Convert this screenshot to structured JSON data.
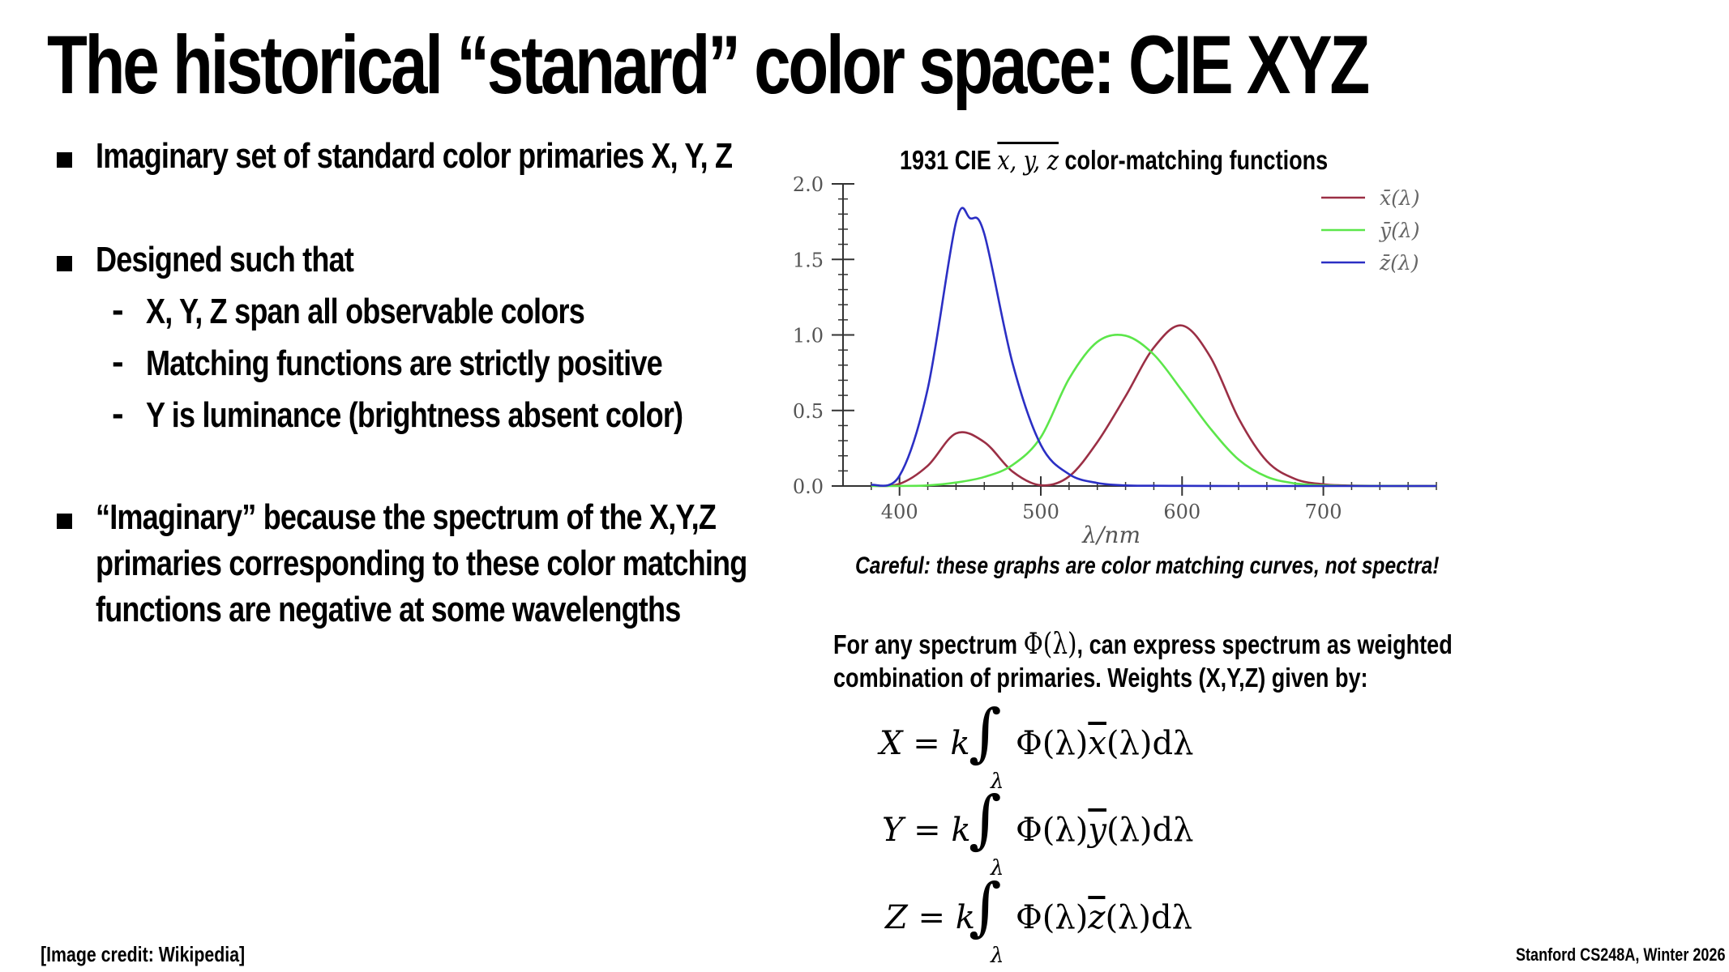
{
  "title": "The historical “stanard” color space: CIE XYZ",
  "bullets": [
    {
      "text": "Imaginary set of standard color primaries X, Y, Z"
    },
    {
      "text": "Designed such that",
      "sub": [
        "X, Y, Z span all observable colors",
        "Matching functions are strictly positive",
        "Y is luminance (brightness absent color)"
      ]
    },
    {
      "lines": [
        "“Imaginary” because the spectrum of the X,Y,Z",
        "primaries corresponding to these color matching",
        "functions are negative at some wavelengths"
      ]
    }
  ],
  "chart_title_prefix": "1931 CIE",
  "chart_title_math": "x, y, z",
  "chart_title_suffix": "color-matching functions",
  "caution": "Careful: these graphs are color matching curves, not spectra!",
  "para_line1_a": "For any spectrum",
  "para_math": "Φ(λ)",
  "para_line1_b": ", can express spectrum as weighted",
  "para_line2": "combination of primaries. Weights (X,Y,Z) given by:",
  "equations": [
    {
      "lhs": "X = k",
      "bar": "x",
      "pre": "Φ(λ)",
      "post": "(λ)dλ"
    },
    {
      "lhs": "Y = k",
      "bar": "y",
      "pre": "Φ(λ)",
      "post": "(λ)dλ"
    },
    {
      "lhs": "Z = k",
      "bar": "z",
      "pre": "Φ(λ)",
      "post": "(λ)dλ"
    }
  ],
  "integral_sub": "λ",
  "footer_left": "[Image credit: Wikipedia]",
  "footer_right": "Stanford CS248A, Winter 2026",
  "chart_data": {
    "type": "line",
    "title": "1931 CIE x, y, z color-matching functions",
    "xlabel": "λ/nm",
    "ylabel": "",
    "xlim": [
      360,
      780
    ],
    "ylim": [
      0,
      2.0
    ],
    "xticks": [
      400,
      500,
      600,
      700
    ],
    "yticks": [
      "0.0",
      "0.5",
      "1.0",
      "1.5",
      "2.0"
    ],
    "yticks_values": [
      0,
      0.5,
      1.0,
      1.5,
      2.0
    ],
    "legend_position": "top-right",
    "series": [
      {
        "name": "x̄(λ)",
        "color": "#9b2f45",
        "x": [
          380,
          400,
          420,
          440,
          460,
          480,
          500,
          520,
          540,
          560,
          580,
          600,
          620,
          640,
          660,
          680,
          700,
          720,
          740,
          760,
          780
        ],
        "y": [
          0.0014,
          0.0143,
          0.1344,
          0.3483,
          0.2908,
          0.0956,
          0.0049,
          0.0633,
          0.2904,
          0.5945,
          0.9163,
          1.0622,
          0.8544,
          0.4479,
          0.1649,
          0.0468,
          0.0114,
          0.0029,
          0.0007,
          0.0002,
          0.0
        ]
      },
      {
        "name": "ȳ(λ)",
        "color": "#5ce64a",
        "x": [
          380,
          400,
          420,
          440,
          460,
          480,
          500,
          520,
          540,
          560,
          580,
          600,
          620,
          640,
          660,
          680,
          700,
          720,
          740,
          760,
          780
        ],
        "y": [
          0.0,
          0.0004,
          0.004,
          0.023,
          0.06,
          0.139,
          0.323,
          0.71,
          0.954,
          0.995,
          0.87,
          0.631,
          0.381,
          0.175,
          0.061,
          0.017,
          0.0041,
          0.001,
          0.0002,
          0.0001,
          0.0
        ]
      },
      {
        "name": "z̄(λ)",
        "color": "#2b2fc4",
        "x": [
          380,
          400,
          420,
          440,
          450,
          460,
          480,
          500,
          520,
          540,
          560,
          580,
          600,
          620,
          640,
          660,
          680,
          700,
          720,
          740,
          760,
          780
        ],
        "y": [
          0.0065,
          0.0679,
          0.6456,
          1.7471,
          1.7721,
          1.6692,
          0.813,
          0.272,
          0.0782,
          0.0203,
          0.0039,
          0.0017,
          0.0008,
          0.0002,
          0.0,
          0.0,
          0.0,
          0.0,
          0.0,
          0.0,
          0.0,
          0.0
        ]
      }
    ]
  }
}
